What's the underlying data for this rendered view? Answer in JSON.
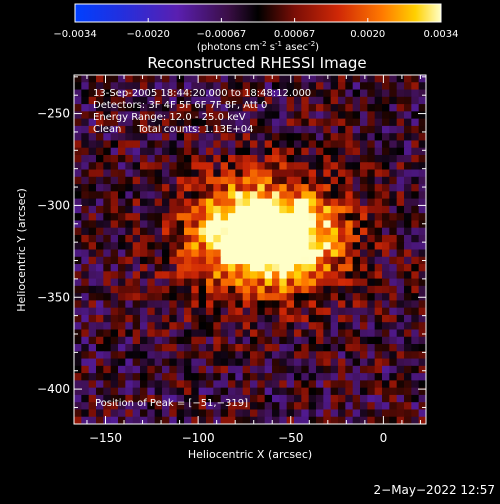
{
  "colorbar": {
    "ticks": [
      "-0.0034",
      "-0.0020",
      "-0.00067",
      "0.00067",
      "0.0020",
      "0.0034"
    ],
    "units_prefix": "(photons cm",
    "units_exp1": "-2",
    "units_mid": " s",
    "units_exp2": "-1",
    "units_mid2": " asec",
    "units_exp3": "-2",
    "units_suffix": ")"
  },
  "chart_data": {
    "type": "heatmap",
    "title": "Reconstructed RHESSI Image",
    "xlabel": "Heliocentric X (arcsec)",
    "ylabel": "Heliocentric Y (arcsec)",
    "xlim": [
      -167,
      23
    ],
    "ylim": [
      -419,
      -229
    ],
    "xticks": [
      {
        "value": -150,
        "label": "−150"
      },
      {
        "value": -100,
        "label": "−100"
      },
      {
        "value": -50,
        "label": "−50"
      },
      {
        "value": 0,
        "label": "0"
      }
    ],
    "yticks": [
      {
        "value": -250,
        "label": "−250"
      },
      {
        "value": -300,
        "label": "−300"
      },
      {
        "value": -350,
        "label": "−350"
      },
      {
        "value": -400,
        "label": "−400"
      }
    ],
    "color_range": [
      -0.0034,
      0.0034
    ],
    "peak_position": [
      -51,
      -319
    ],
    "sources": [
      {
        "x": -51,
        "y": -319,
        "amplitude": 0.0034
      },
      {
        "x": -77,
        "y": -314,
        "amplitude": 0.003
      }
    ],
    "annotations": [
      "13-Sep-2005 18:44:20.000 to 18:48:12.000",
      "Detectors: 3F 4F 5F 6F 7F 8F, Att 0",
      "Energy Range: 12.0 - 25.0 keV",
      "Clean     Total counts: 1.13E+04"
    ],
    "peak_label": "Position of Peak = [−51,−319]"
  },
  "footer": {
    "timestamp": "2−May−2022 12:57"
  }
}
